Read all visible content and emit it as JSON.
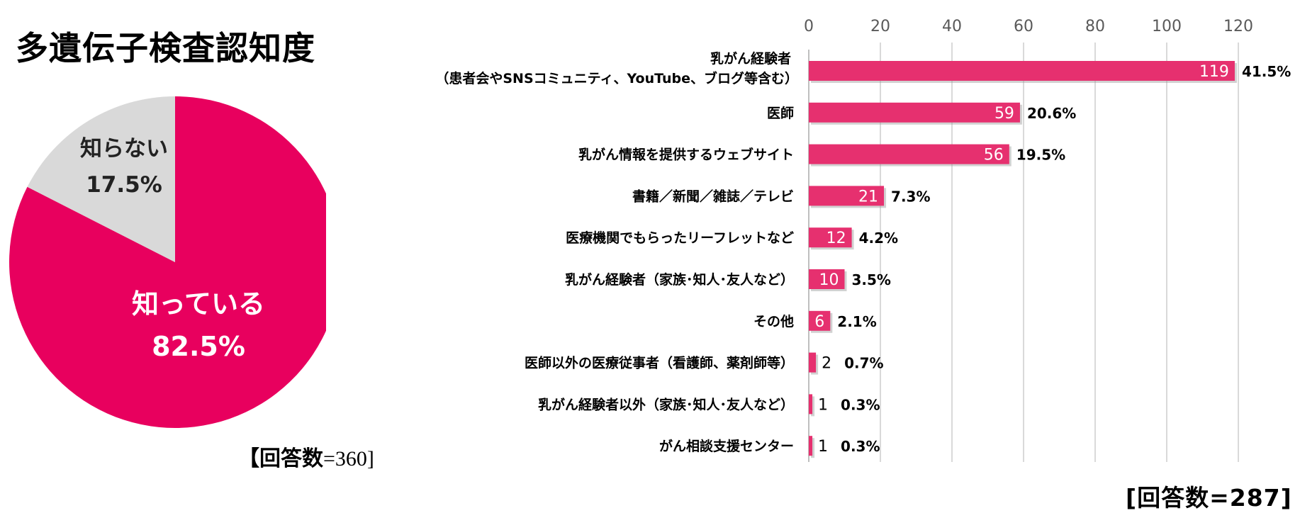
{
  "title": "多遺伝子検査認知度",
  "pie": {
    "n_bracket_open": "【",
    "n_label": "回答数",
    "n_eq": "=360",
    "n_bracket_close": "]"
  },
  "bars": {
    "n_text": "[回答数=287]"
  },
  "colors": {
    "accent": "#E8005E",
    "bar": "#E6306F",
    "pie_gray": "#D9D9D9",
    "grid": "#D9D9D9"
  },
  "chart_data": [
    {
      "type": "pie",
      "slices": [
        {
          "label": "知っている",
          "percent_label": "82.5%",
          "value": 82.5,
          "color": "#E8005E"
        },
        {
          "label": "知らない",
          "percent_label": "17.5%",
          "value": 17.5,
          "color": "#D9D9D9"
        }
      ]
    },
    {
      "type": "bar",
      "orientation": "horizontal",
      "xlim": [
        0,
        120
      ],
      "xticks": [
        0,
        20,
        40,
        60,
        80,
        100,
        120
      ],
      "grid": true,
      "categories": [
        [
          "乳がん経験者",
          "（患者会やSNSコミュニティ、YouTube、ブログ等含む）"
        ],
        [
          "医師"
        ],
        [
          "乳がん情報を提供するウェブサイト"
        ],
        [
          "書籍／新聞／雑誌／テレビ"
        ],
        [
          "医療機関でもらったリーフレットなど"
        ],
        [
          "乳がん経験者（家族･知人･友人など）"
        ],
        [
          "その他"
        ],
        [
          "医師以外の医療従事者（看護師、薬剤師等）"
        ],
        [
          "乳がん経験者以外（家族･知人･友人など）"
        ],
        [
          "がん相談支援センター"
        ]
      ],
      "values": [
        119,
        59,
        56,
        21,
        12,
        10,
        6,
        2,
        1,
        1
      ],
      "percents": [
        "41.5%",
        "20.6%",
        "19.5%",
        "7.3%",
        "4.2%",
        "3.5%",
        "2.1%",
        "0.7%",
        "0.3%",
        "0.3%"
      ]
    }
  ]
}
